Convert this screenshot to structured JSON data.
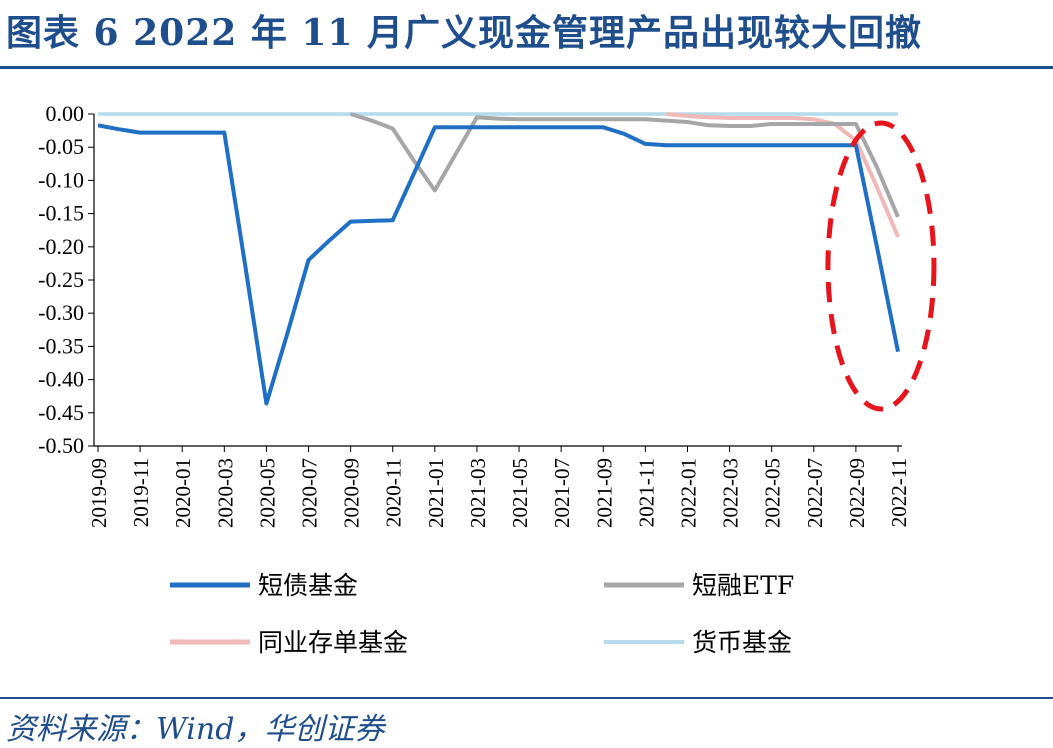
{
  "header": {
    "title": "图表 6  2022 年 11 月广义现金管理产品出现较大回撤"
  },
  "footer": {
    "source": "资料来源：Wind，华创证券"
  },
  "chart_data": {
    "type": "line",
    "title": "",
    "xlabel": "",
    "ylabel": "",
    "ylim": [
      -0.5,
      0.0
    ],
    "y_ticks": [
      0.0,
      -0.05,
      -0.1,
      -0.15,
      -0.2,
      -0.25,
      -0.3,
      -0.35,
      -0.4,
      -0.45,
      -0.5
    ],
    "y_tick_labels": [
      "0.00",
      "-0.05",
      "-0.10",
      "-0.15",
      "-0.20",
      "-0.25",
      "-0.30",
      "-0.35",
      "-0.40",
      "-0.45",
      "-0.50"
    ],
    "x": [
      "2019-09",
      "2019-10",
      "2019-11",
      "2019-12",
      "2020-01",
      "2020-02",
      "2020-03",
      "2020-04",
      "2020-05",
      "2020-06",
      "2020-07",
      "2020-08",
      "2020-09",
      "2020-10",
      "2020-11",
      "2020-12",
      "2021-01",
      "2021-02",
      "2021-03",
      "2021-04",
      "2021-05",
      "2021-06",
      "2021-07",
      "2021-08",
      "2021-09",
      "2021-10",
      "2021-11",
      "2021-12",
      "2022-01",
      "2022-02",
      "2022-03",
      "2022-04",
      "2022-05",
      "2022-06",
      "2022-07",
      "2022-08",
      "2022-09",
      "2022-10",
      "2022-11"
    ],
    "x_tick_labels": [
      "2019-09",
      "2019-11",
      "2020-01",
      "2020-03",
      "2020-05",
      "2020-07",
      "2020-09",
      "2020-11",
      "2021-01",
      "2021-03",
      "2021-05",
      "2021-07",
      "2021-09",
      "2021-11",
      "2022-01",
      "2022-03",
      "2022-05",
      "2022-07",
      "2022-09",
      "2022-11"
    ],
    "grid": false,
    "legend_position": "bottom",
    "series": [
      {
        "name": "短债基金",
        "color": "#1f6fc5",
        "values": [
          -0.017,
          -0.023,
          -0.028,
          -0.028,
          -0.028,
          -0.028,
          -0.028,
          -0.23,
          -0.436,
          -0.33,
          -0.22,
          -0.19,
          -0.162,
          -0.161,
          -0.16,
          -0.09,
          -0.02,
          -0.02,
          -0.02,
          -0.02,
          -0.02,
          -0.02,
          -0.02,
          -0.02,
          -0.02,
          -0.03,
          -0.045,
          -0.047,
          -0.047,
          -0.047,
          -0.047,
          -0.047,
          -0.047,
          -0.047,
          -0.047,
          -0.047,
          -0.047,
          -0.2,
          -0.358
        ]
      },
      {
        "name": "短融ETF",
        "color": "#a6a6a6",
        "values": [
          null,
          null,
          null,
          null,
          null,
          null,
          null,
          null,
          null,
          null,
          null,
          null,
          0.0,
          -0.01,
          -0.022,
          -0.07,
          -0.115,
          -0.06,
          -0.005,
          -0.007,
          -0.008,
          -0.008,
          -0.008,
          -0.008,
          -0.008,
          -0.008,
          -0.008,
          -0.01,
          -0.012,
          -0.017,
          -0.018,
          -0.018,
          -0.015,
          -0.015,
          -0.015,
          -0.015,
          -0.015,
          -0.08,
          -0.155
        ]
      },
      {
        "name": "同业存单基金",
        "color": "#f2b8b8",
        "values": [
          null,
          null,
          null,
          null,
          null,
          null,
          null,
          null,
          null,
          null,
          null,
          null,
          null,
          null,
          null,
          null,
          null,
          null,
          null,
          null,
          null,
          null,
          null,
          null,
          null,
          null,
          null,
          0.0,
          -0.003,
          -0.005,
          -0.006,
          -0.006,
          -0.006,
          -0.006,
          -0.008,
          -0.015,
          -0.04,
          -0.11,
          -0.185
        ]
      },
      {
        "name": "货币基金",
        "color": "#b4dcea",
        "values": [
          0,
          0,
          0,
          0,
          0,
          0,
          0,
          0,
          0,
          0,
          0,
          0,
          0,
          0,
          0,
          0,
          0,
          0,
          0,
          0,
          0,
          0,
          0,
          0,
          0,
          0,
          0,
          0,
          0,
          0,
          0,
          0,
          0,
          0,
          0,
          0,
          0,
          0,
          0
        ]
      }
    ],
    "annotation": {
      "shape": "dashed-ellipse",
      "color": "#e8141b",
      "target_x_range": [
        "2022-09",
        "2022-11"
      ]
    }
  }
}
